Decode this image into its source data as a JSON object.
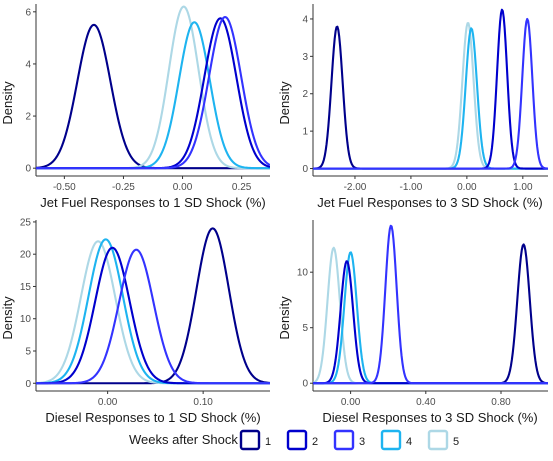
{
  "colors": {
    "1": "#00008B",
    "2": "#0000CD",
    "3": "#3333FF",
    "4": "#1EB4F0",
    "5": "#ADD8E6"
  },
  "legend": {
    "title": "Weeks after Shock",
    "labels": [
      "1",
      "2",
      "3",
      "4",
      "5"
    ]
  },
  "chart_data": [
    {
      "type": "density",
      "xlabel": "Jet Fuel Responses to 1 SD Shock (%)",
      "ylabel": "Density",
      "xlim": [
        -0.62,
        0.37
      ],
      "ylim": [
        -0.3,
        6.3
      ],
      "xticks": [
        -0.5,
        -0.25,
        0.0,
        0.25
      ],
      "xtick_labels": [
        "-0.50",
        "-0.25",
        "0.00",
        "0.25"
      ],
      "yticks": [
        0,
        2,
        4,
        6
      ],
      "ytick_labels": [
        "0",
        "2",
        "4",
        "6"
      ],
      "series": [
        {
          "name": "1",
          "mean": -0.375,
          "sd": 0.07,
          "peak": 5.5
        },
        {
          "name": "2",
          "mean": 0.16,
          "sd": 0.068,
          "peak": 5.75
        },
        {
          "name": "3",
          "mean": 0.18,
          "sd": 0.068,
          "peak": 5.8
        },
        {
          "name": "4",
          "mean": 0.05,
          "sd": 0.065,
          "peak": 5.6
        },
        {
          "name": "5",
          "mean": 0.005,
          "sd": 0.063,
          "peak": 6.2
        }
      ]
    },
    {
      "type": "density",
      "xlabel": "Jet Fuel Responses to 3 SD Shock (%)",
      "ylabel": "Density",
      "xlim": [
        -2.75,
        1.45
      ],
      "ylim": [
        -0.2,
        4.4
      ],
      "xticks": [
        -2.0,
        -1.0,
        0.0,
        1.0
      ],
      "xtick_labels": [
        "-2.00",
        "-1.00",
        "0.00",
        "1.00"
      ],
      "yticks": [
        0,
        1,
        2,
        3,
        4
      ],
      "ytick_labels": [
        "0",
        "1",
        "2",
        "3",
        "4"
      ],
      "series": [
        {
          "name": "1",
          "mean": -2.32,
          "sd": 0.1,
          "peak": 3.8
        },
        {
          "name": "2",
          "mean": 0.63,
          "sd": 0.09,
          "peak": 4.25
        },
        {
          "name": "3",
          "mean": 1.08,
          "sd": 0.09,
          "peak": 4.0
        },
        {
          "name": "4",
          "mean": 0.08,
          "sd": 0.1,
          "peak": 3.75
        },
        {
          "name": "5",
          "mean": 0.02,
          "sd": 0.1,
          "peak": 3.9
        }
      ]
    },
    {
      "type": "density",
      "xlabel": "Diesel Responses to 1 SD Shock (%)",
      "ylabel": "Density",
      "xlim": [
        -0.075,
        0.17
      ],
      "ylim": [
        -1.2,
        25.3
      ],
      "xticks": [
        0.0,
        0.1
      ],
      "xtick_labels": [
        "0.00",
        "0.10"
      ],
      "yticks": [
        0,
        5,
        10,
        15,
        20,
        25
      ],
      "ytick_labels": [
        "0",
        "5",
        "10",
        "15",
        "20",
        "25"
      ],
      "series": [
        {
          "name": "1",
          "mean": 0.11,
          "sd": 0.017,
          "peak": 24.0
        },
        {
          "name": "2",
          "mean": 0.005,
          "sd": 0.018,
          "peak": 21.0
        },
        {
          "name": "3",
          "mean": 0.03,
          "sd": 0.018,
          "peak": 20.7
        },
        {
          "name": "4",
          "mean": -0.002,
          "sd": 0.018,
          "peak": 22.3
        },
        {
          "name": "5",
          "mean": -0.01,
          "sd": 0.018,
          "peak": 22.0
        }
      ]
    },
    {
      "type": "density",
      "xlabel": "Diesel Responses to 3 SD Shock (%)",
      "ylabel": "Density",
      "xlim": [
        -0.2,
        1.05
      ],
      "ylim": [
        -0.7,
        14.7
      ],
      "xticks": [
        0.0,
        0.4,
        0.8
      ],
      "xtick_labels": [
        "0.00",
        "0.40",
        "0.80"
      ],
      "yticks": [
        0,
        5,
        10
      ],
      "ytick_labels": [
        "0",
        "5",
        "10"
      ],
      "series": [
        {
          "name": "1",
          "mean": 0.92,
          "sd": 0.033,
          "peak": 12.5
        },
        {
          "name": "2",
          "mean": -0.02,
          "sd": 0.033,
          "peak": 11.0
        },
        {
          "name": "3",
          "mean": 0.215,
          "sd": 0.03,
          "peak": 14.2
        },
        {
          "name": "4",
          "mean": 0.0,
          "sd": 0.033,
          "peak": 11.8
        },
        {
          "name": "5",
          "mean": -0.09,
          "sd": 0.033,
          "peak": 12.2
        }
      ]
    }
  ]
}
